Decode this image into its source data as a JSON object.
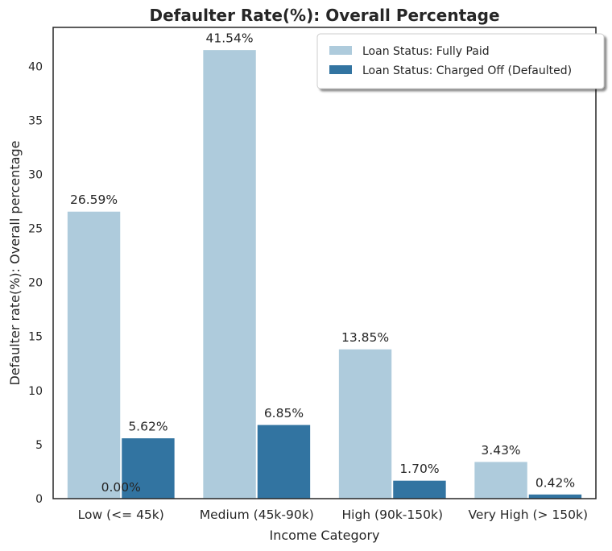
{
  "chart_data": {
    "type": "bar",
    "title": "Defaulter Rate(%): Overall Percentage",
    "xlabel": "Income Category",
    "ylabel": "Defaulter rate(%): Overall percentage",
    "categories": [
      "Low (<= 45k)",
      "Medium (45k-90k)",
      "High (90k-150k)",
      "Very High (> 150k)"
    ],
    "series": [
      {
        "name": "Loan Status: Fully Paid",
        "color": "#aecbdc",
        "values": [
          26.59,
          41.54,
          13.85,
          3.43
        ],
        "labels": [
          "26.59%",
          "41.54%",
          "13.85%",
          "3.43%"
        ]
      },
      {
        "name": "Loan Status: Charged Off (Defaulted)",
        "color": "#3274a1",
        "values": [
          5.62,
          6.85,
          1.7,
          0.42
        ],
        "labels": [
          "5.62%",
          "6.85%",
          "1.70%",
          "0.42%"
        ]
      }
    ],
    "extra_label": "0.00%",
    "ylim": [
      0,
      43.6
    ],
    "yticks": [
      0,
      5,
      10,
      15,
      20,
      25,
      30,
      35,
      40
    ],
    "grid": false,
    "legend_position": "top-right"
  }
}
